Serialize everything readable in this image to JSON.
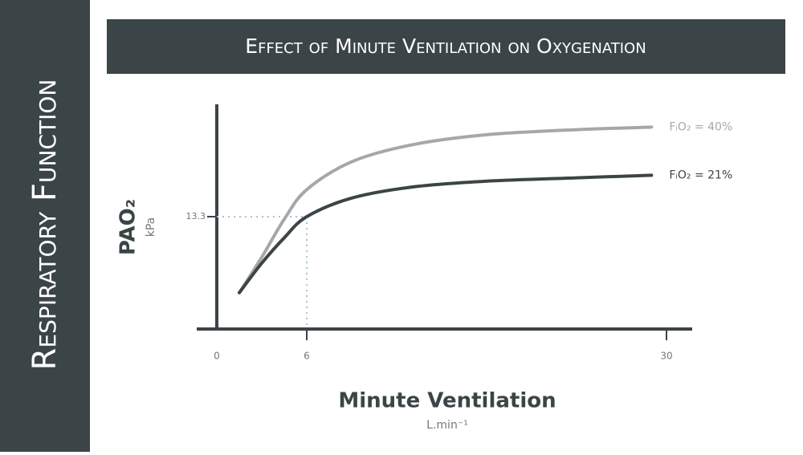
{
  "sidebar_title": "Respiratory Function",
  "chart_data": {
    "type": "line",
    "title": "Effect of Minute Ventilation on Oxygenation",
    "y_label": "PAO₂",
    "y_unit": "kPa",
    "x_label": "Minute Ventilation",
    "x_unit": "L.min⁻¹",
    "x": [
      1.5,
      3,
      4.5,
      6,
      9,
      13,
      18,
      24,
      29
    ],
    "series": [
      {
        "name": "FᵢO₂ = 40%",
        "color": "#a6a8a7",
        "values": [
          4.3,
          8.5,
          13.0,
          16.5,
          19.8,
          21.8,
          23.0,
          23.6,
          23.9
        ]
      },
      {
        "name": "FᵢO₂ = 21%",
        "color": "#3b4446",
        "values": [
          4.3,
          7.8,
          10.8,
          13.3,
          15.5,
          16.8,
          17.5,
          17.9,
          18.2
        ]
      }
    ],
    "xlim": [
      0,
      30
    ],
    "xticks": [
      0,
      6,
      30
    ],
    "ylim": [
      0,
      26.6
    ],
    "yticks": [
      13.3
    ],
    "reference_color": "#a9c4d0"
  }
}
